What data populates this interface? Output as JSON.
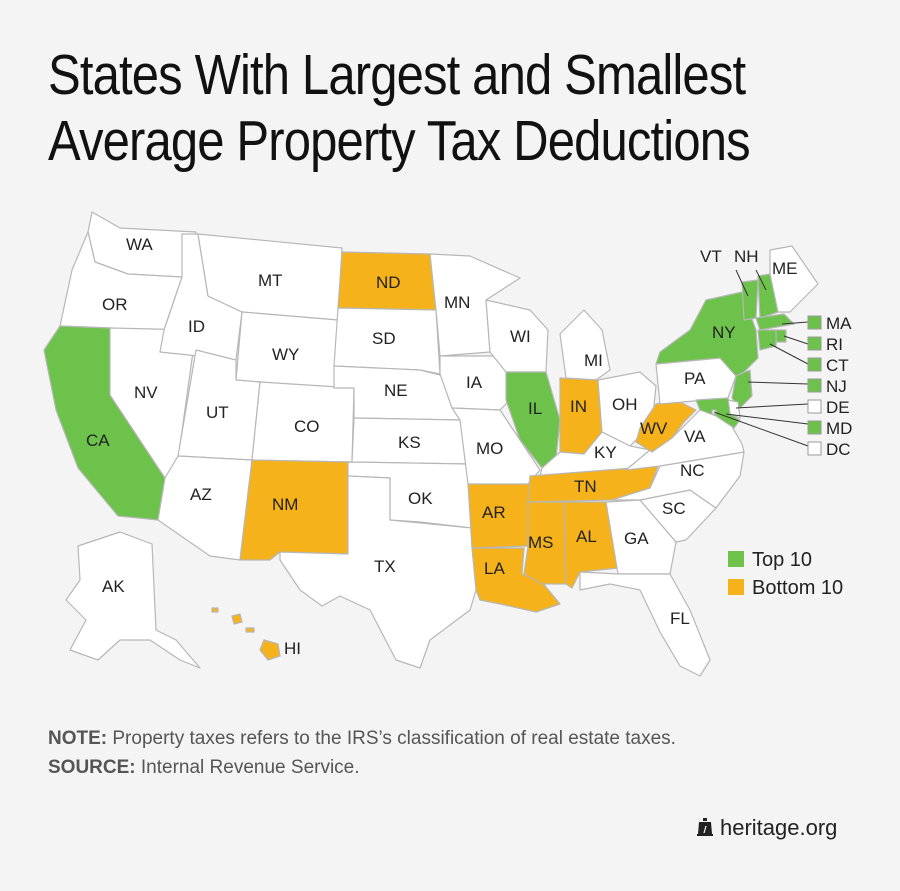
{
  "title": {
    "line1": "States With Largest and Smallest",
    "line2": "Average Property Tax Deductions"
  },
  "colors": {
    "top": "#6cc24a",
    "bottom": "#f6b21b",
    "none": "#ffffff"
  },
  "states": {
    "WA": "WA",
    "OR": "OR",
    "CA": "CA",
    "NV": "NV",
    "ID": "ID",
    "MT": "MT",
    "WY": "WY",
    "UT": "UT",
    "AZ": "AZ",
    "CO": "CO",
    "NM": "NM",
    "ND": "ND",
    "SD": "SD",
    "NE": "NE",
    "KS": "KS",
    "OK": "OK",
    "TX": "TX",
    "MN": "MN",
    "IA": "IA",
    "MO": "MO",
    "AR": "AR",
    "LA": "LA",
    "WI": "WI",
    "IL": "IL",
    "MI": "MI",
    "IN": "IN",
    "OH": "OH",
    "KY": "KY",
    "TN": "TN",
    "MS": "MS",
    "AL": "AL",
    "GA": "GA",
    "FL": "FL",
    "SC": "SC",
    "NC": "NC",
    "VA": "VA",
    "WV": "WV",
    "PA": "PA",
    "NY": "NY",
    "VT": "VT",
    "NH": "NH",
    "ME": "ME",
    "MA": "MA",
    "RI": "RI",
    "CT": "CT",
    "NJ": "NJ",
    "DE": "DE",
    "MD": "MD",
    "DC": "DC",
    "AK": "AK",
    "HI": "HI"
  },
  "groups": {
    "top10": [
      "CA",
      "IL",
      "NY",
      "VT",
      "NH",
      "MA",
      "RI",
      "CT",
      "NJ",
      "MD"
    ],
    "bottom10": [
      "ND",
      "NM",
      "IN",
      "WV",
      "AR",
      "LA",
      "MS",
      "AL",
      "TN",
      "HI"
    ]
  },
  "legend": {
    "top": "Top 10",
    "bottom": "Bottom 10"
  },
  "note": {
    "label": "NOTE:",
    "text": " Property taxes refers to the IRS’s classification of real estate taxes."
  },
  "source": {
    "label": "SOURCE:",
    "text": " Internal Revenue Service."
  },
  "brand": "heritage.org",
  "icons": {
    "brand": "liberty-bell-icon"
  }
}
